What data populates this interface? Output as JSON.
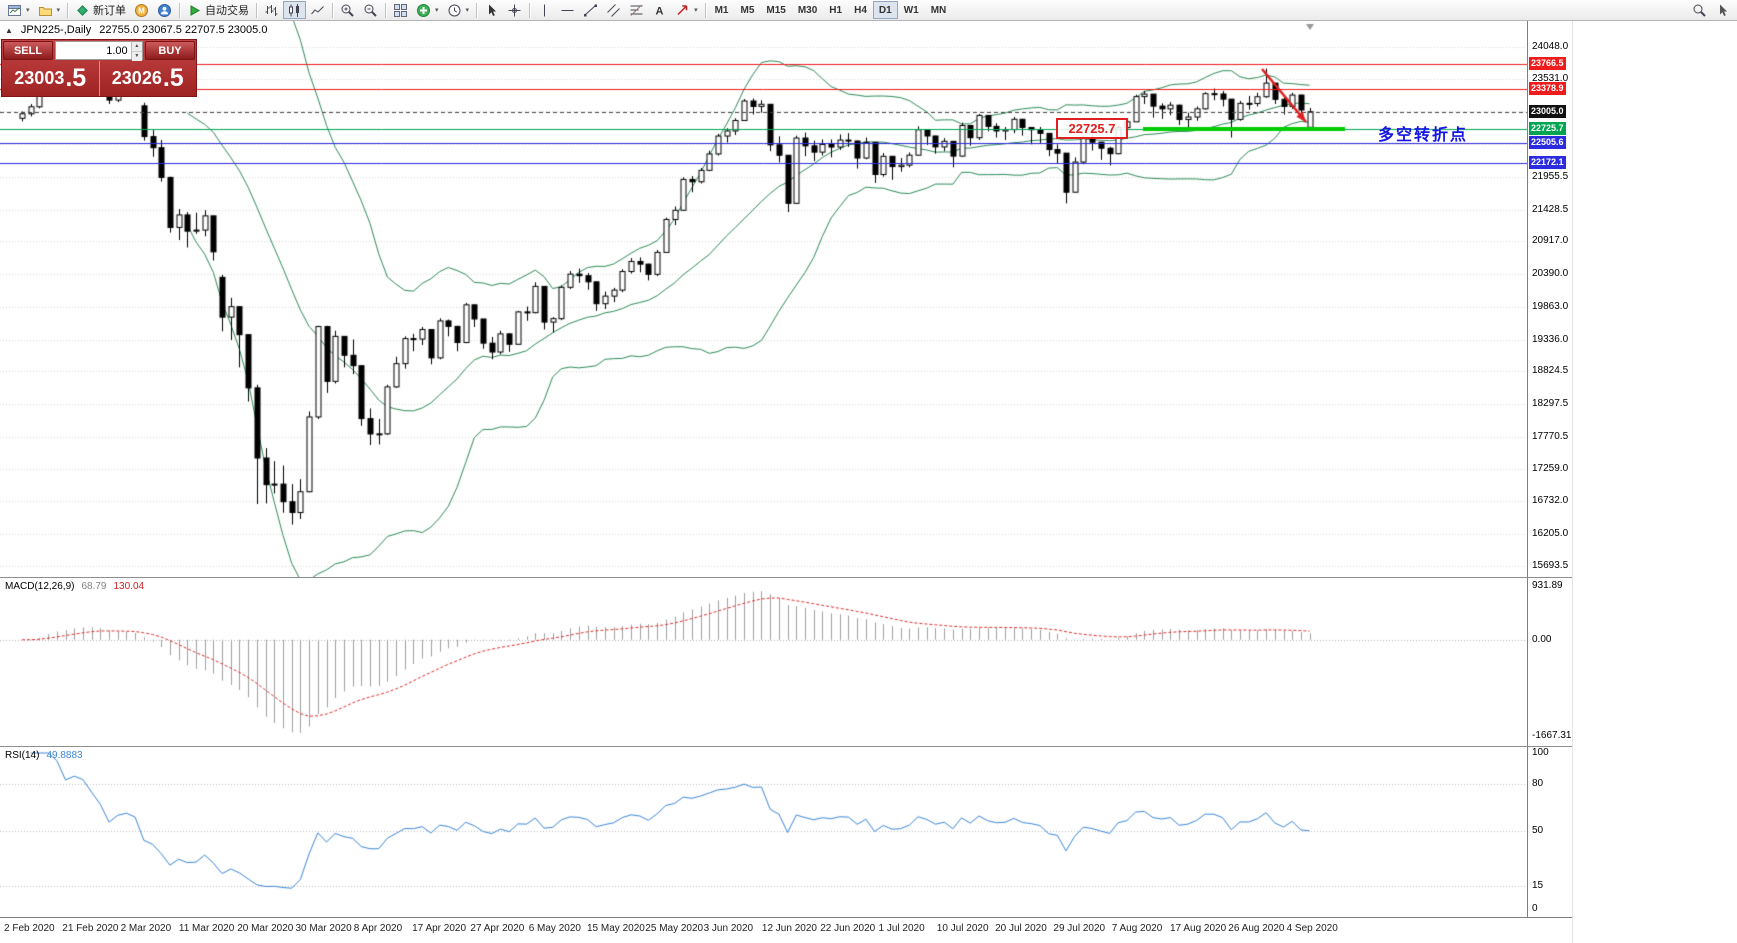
{
  "toolbar": {
    "new_order_label": "新订单",
    "autotrading_label": "自动交易",
    "timeframes": [
      "M1",
      "M5",
      "M15",
      "M30",
      "H1",
      "H4",
      "D1",
      "W1",
      "MN"
    ],
    "active_timeframe": "D1"
  },
  "chart": {
    "title": "JPN225-,Daily",
    "ohlc": "22755.0 23067.5 22707.5 23005.0"
  },
  "trade_panel": {
    "sell_label": "SELL",
    "buy_label": "BUY",
    "volume": "1.00",
    "sell_price_main": "23003",
    "sell_price_pips": ".5",
    "buy_price_main": "23026",
    "buy_price_pips": ".5"
  },
  "price_axis": {
    "labels": [
      {
        "price": 24048.0,
        "text": "24048.0"
      },
      {
        "price": 23531.0,
        "text": "23531.0"
      },
      {
        "price": 21955.5,
        "text": "21955.5"
      },
      {
        "price": 21428.5,
        "text": "21428.5"
      },
      {
        "price": 20917.0,
        "text": "20917.0"
      },
      {
        "price": 20390.0,
        "text": "20390.0"
      },
      {
        "price": 19863.0,
        "text": "19863.0"
      },
      {
        "price": 19336.0,
        "text": "19336.0"
      },
      {
        "price": 18824.5,
        "text": "18824.5"
      },
      {
        "price": 18297.5,
        "text": "18297.5"
      },
      {
        "price": 17770.5,
        "text": "17770.5"
      },
      {
        "price": 17259.0,
        "text": "17259.0"
      },
      {
        "price": 16732.0,
        "text": "16732.0"
      },
      {
        "price": 16205.0,
        "text": "16205.0"
      },
      {
        "price": 15693.5,
        "text": "15693.5"
      }
    ],
    "unlabeled_gridlines": [
      23009.5,
      22482.5
    ],
    "badges": [
      {
        "price": 23766.5,
        "text": "23766.5",
        "color": "#ee1c1c"
      },
      {
        "price": 23378.9,
        "text": "23378.9",
        "color": "#ee1c1c"
      },
      {
        "price": 23005.0,
        "text": "23005.0",
        "color": "#111111"
      },
      {
        "price": 22725.7,
        "text": "22725.7",
        "color": "#00a550"
      },
      {
        "price": 22505.6,
        "text": "22505.6",
        "color": "#2b2be0"
      },
      {
        "price": 22172.1,
        "text": "22172.1",
        "color": "#2b2be0"
      }
    ]
  },
  "hlines": [
    {
      "price": 23766.5,
      "color": "#ee1c1c",
      "style": "solid"
    },
    {
      "price": 23378.9,
      "color": "#ee1c1c",
      "style": "solid"
    },
    {
      "price": 23005.0,
      "color": "#444444",
      "style": "dash"
    },
    {
      "price": 22725.7,
      "color": "#00a550",
      "style": "solid"
    },
    {
      "price": 22505.6,
      "color": "#2b2be0",
      "style": "solid"
    },
    {
      "price": 22172.1,
      "color": "#2b2be0",
      "style": "solid"
    }
  ],
  "annotations": {
    "price_box_text": "22725.7",
    "note_text": "多空转折点",
    "note_color": "#1414e6",
    "support_segment": {
      "price": 22725.7,
      "color": "#00cc00"
    },
    "trend_arrow_color": "#e02020"
  },
  "macd": {
    "name": "MACD(12,26,9)",
    "value_main": "68.79",
    "value_signal": "130.04",
    "range": [
      -1667.31,
      931.89
    ],
    "axis": [
      {
        "v": 931.89,
        "text": "931.89"
      },
      {
        "v": 0,
        "text": "0.00"
      },
      {
        "v": -1667.31,
        "text": "-1667.31"
      }
    ]
  },
  "rsi": {
    "name": "RSI(14)",
    "value": "49.8883",
    "levels": [
      80,
      50,
      15
    ],
    "axis": [
      {
        "v": 100,
        "text": "100"
      },
      {
        "v": 80,
        "text": "80"
      },
      {
        "v": 50,
        "text": "50"
      },
      {
        "v": 15,
        "text": "15"
      },
      {
        "v": 0,
        "text": "0"
      }
    ]
  },
  "time_axis": [
    "2 Feb 2020",
    "21 Feb 2020",
    "2 Mar 2020",
    "11 Mar 2020",
    "20 Mar 2020",
    "30 Mar 2020",
    "8 Apr 2020",
    "17 Apr 2020",
    "27 Apr 2020",
    "6 May 2020",
    "15 May 2020",
    "25 May 2020",
    "3 Jun 2020",
    "12 Jun 2020",
    "22 Jun 2020",
    "1 Jul 2020",
    "10 Jul 2020",
    "20 Jul 2020",
    "29 Jul 2020",
    "7 Aug 2020",
    "17 Aug 2020",
    "26 Aug 2020",
    "4 Sep 2020"
  ],
  "chart_data": {
    "type": "candlestick",
    "symbol": "JPN225-",
    "period": "Daily",
    "price_range_visible": [
      15693.5,
      24048.0
    ],
    "indicators": [
      "Bollinger Bands(20,2)",
      "MACD(12,26,9)",
      "RSI(14)"
    ],
    "colors": {
      "bull": "#ffffff",
      "bear": "#000000",
      "wick": "#000000",
      "bollinger": "#2e8b57",
      "macd_histogram": "#a0a0a0",
      "macd_signal": "#e03030",
      "rsi": "#3d87d8"
    },
    "candles_ohlc": [
      [
        22900,
        23010,
        22850,
        22972
      ],
      [
        22972,
        23130,
        22930,
        23085
      ],
      [
        23085,
        23360,
        23060,
        23320
      ],
      [
        23320,
        23900,
        23300,
        23874
      ],
      [
        23874,
        23920,
        23740,
        23828
      ],
      [
        23828,
        23850,
        23600,
        23686
      ],
      [
        23686,
        23880,
        23650,
        23861
      ],
      [
        23861,
        23900,
        23760,
        23828
      ],
      [
        23828,
        23860,
        23640,
        23688
      ],
      [
        23688,
        23710,
        23450,
        23523
      ],
      [
        23523,
        23550,
        23130,
        23193
      ],
      [
        23193,
        23430,
        23160,
        23401
      ],
      [
        23401,
        23520,
        23350,
        23479
      ],
      [
        23479,
        23500,
        23270,
        23386
      ],
      [
        23100,
        23150,
        22540,
        22605
      ],
      [
        22605,
        22710,
        22280,
        22426
      ],
      [
        22426,
        22550,
        21880,
        21948
      ],
      [
        21948,
        21960,
        21060,
        21143
      ],
      [
        21143,
        21440,
        20940,
        21344
      ],
      [
        21344,
        21390,
        20820,
        21083
      ],
      [
        21083,
        21380,
        21040,
        21100
      ],
      [
        21100,
        21420,
        21000,
        21329
      ],
      [
        21329,
        21330,
        20610,
        20750
      ],
      [
        20340,
        20380,
        19470,
        19699
      ],
      [
        19699,
        20010,
        19330,
        19867
      ],
      [
        19867,
        19870,
        18890,
        19416
      ],
      [
        19416,
        19420,
        18340,
        18560
      ],
      [
        18560,
        18610,
        16690,
        17431
      ],
      [
        17431,
        17590,
        16700,
        17002
      ],
      [
        17002,
        17380,
        16860,
        17011
      ],
      [
        17011,
        17310,
        16550,
        16727
      ],
      [
        16727,
        17010,
        16360,
        16553
      ],
      [
        16553,
        17090,
        16450,
        16888
      ],
      [
        16888,
        18180,
        16880,
        18092
      ],
      [
        18092,
        19560,
        18060,
        19547
      ],
      [
        19547,
        19560,
        18480,
        18665
      ],
      [
        18665,
        19480,
        18630,
        19389
      ],
      [
        19389,
        19390,
        18890,
        19085
      ],
      [
        19085,
        19340,
        18780,
        18917
      ],
      [
        18917,
        18920,
        17950,
        18065
      ],
      [
        18065,
        18230,
        17640,
        17818
      ],
      [
        17818,
        18060,
        17650,
        17820
      ],
      [
        17820,
        18610,
        17800,
        18576
      ],
      [
        18576,
        19060,
        18560,
        18950
      ],
      [
        18950,
        19390,
        18870,
        19353
      ],
      [
        19353,
        19430,
        19150,
        19346
      ],
      [
        19346,
        19540,
        19250,
        19499
      ],
      [
        19499,
        19500,
        18940,
        19043
      ],
      [
        19043,
        19680,
        19020,
        19638
      ],
      [
        19638,
        19660,
        19390,
        19550
      ],
      [
        19550,
        19560,
        19150,
        19290
      ],
      [
        19290,
        19930,
        19280,
        19897
      ],
      [
        19897,
        19900,
        19540,
        19669
      ],
      [
        19669,
        19670,
        19190,
        19280
      ],
      [
        19280,
        19380,
        19020,
        19137
      ],
      [
        19137,
        19480,
        19100,
        19429
      ],
      [
        19429,
        19440,
        19140,
        19262
      ],
      [
        19262,
        19800,
        19250,
        19783
      ],
      [
        19783,
        19870,
        19640,
        19771
      ],
      [
        19771,
        20260,
        19760,
        20194
      ],
      [
        20194,
        20200,
        19500,
        19619
      ],
      [
        19619,
        19700,
        19450,
        19674
      ],
      [
        19674,
        20210,
        19650,
        20179
      ],
      [
        20179,
        20440,
        20150,
        20391
      ],
      [
        20391,
        20480,
        20250,
        20366
      ],
      [
        20366,
        20410,
        20140,
        20267
      ],
      [
        20267,
        20270,
        19800,
        19915
      ],
      [
        19915,
        20110,
        19830,
        20037
      ],
      [
        20037,
        20170,
        19940,
        20134
      ],
      [
        20134,
        20470,
        20100,
        20433
      ],
      [
        20433,
        20650,
        20400,
        20595
      ],
      [
        20595,
        20660,
        20420,
        20552
      ],
      [
        20552,
        20560,
        20290,
        20388
      ],
      [
        20388,
        20780,
        20360,
        20741
      ],
      [
        20741,
        21300,
        20740,
        21271
      ],
      [
        21271,
        21480,
        21180,
        21419
      ],
      [
        21419,
        21950,
        21410,
        21916
      ],
      [
        21916,
        21970,
        21710,
        21878
      ],
      [
        21878,
        22100,
        21850,
        22062
      ],
      [
        22062,
        22380,
        22050,
        22326
      ],
      [
        22326,
        22650,
        22300,
        22614
      ],
      [
        22614,
        22740,
        22510,
        22696
      ],
      [
        22696,
        22900,
        22630,
        22864
      ],
      [
        22864,
        23210,
        22860,
        23178
      ],
      [
        23178,
        23220,
        22960,
        23091
      ],
      [
        23091,
        23190,
        22990,
        23125
      ],
      [
        23125,
        23130,
        22370,
        22472
      ],
      [
        22472,
        22610,
        22190,
        22305
      ],
      [
        22305,
        22310,
        21390,
        21531
      ],
      [
        21531,
        22620,
        21520,
        22582
      ],
      [
        22582,
        22670,
        22290,
        22456
      ],
      [
        22456,
        22540,
        22210,
        22355
      ],
      [
        22355,
        22560,
        22300,
        22479
      ],
      [
        22479,
        22560,
        22270,
        22437
      ],
      [
        22437,
        22640,
        22390,
        22549
      ],
      [
        22549,
        22660,
        22440,
        22534
      ],
      [
        22534,
        22540,
        22090,
        22260
      ],
      [
        22260,
        22590,
        22240,
        22512
      ],
      [
        22512,
        22520,
        21860,
        21995
      ],
      [
        21995,
        22340,
        21960,
        22288
      ],
      [
        22288,
        22290,
        21910,
        22122
      ],
      [
        22122,
        22260,
        22040,
        22146
      ],
      [
        22146,
        22350,
        22110,
        22306
      ],
      [
        22306,
        22770,
        22300,
        22714
      ],
      [
        22714,
        22720,
        22470,
        22615
      ],
      [
        22615,
        22620,
        22330,
        22439
      ],
      [
        22439,
        22580,
        22370,
        22529
      ],
      [
        22529,
        22530,
        22110,
        22291
      ],
      [
        22291,
        22830,
        22280,
        22784
      ],
      [
        22784,
        22790,
        22460,
        22587
      ],
      [
        22587,
        22970,
        22550,
        22946
      ],
      [
        22946,
        22950,
        22690,
        22770
      ],
      [
        22770,
        22820,
        22590,
        22696
      ],
      [
        22696,
        22760,
        22550,
        22717
      ],
      [
        22717,
        22920,
        22660,
        22884
      ],
      [
        22884,
        22890,
        22620,
        22752
      ],
      [
        22752,
        22760,
        22480,
        22715
      ],
      [
        22715,
        22760,
        22490,
        22657
      ],
      [
        22657,
        22660,
        22290,
        22397
      ],
      [
        22397,
        22480,
        22180,
        22339
      ],
      [
        22339,
        22340,
        21530,
        21710
      ],
      [
        21710,
        22270,
        21700,
        22195
      ],
      [
        22195,
        22620,
        22160,
        22573
      ],
      [
        22573,
        22650,
        22380,
        22515
      ],
      [
        22515,
        22520,
        22230,
        22418
      ],
      [
        22418,
        22440,
        22140,
        22330
      ],
      [
        22330,
        22780,
        22320,
        22750
      ],
      [
        22750,
        22890,
        22700,
        22843
      ],
      [
        22843,
        23280,
        22840,
        23249
      ],
      [
        23249,
        23340,
        23130,
        23289
      ],
      [
        23289,
        23290,
        22910,
        23096
      ],
      [
        23096,
        23140,
        22890,
        23051
      ],
      [
        23051,
        23160,
        22950,
        23111
      ],
      [
        23111,
        23120,
        22790,
        22880
      ],
      [
        22880,
        22990,
        22740,
        22920
      ],
      [
        22920,
        23090,
        22860,
        23052
      ],
      [
        23052,
        23320,
        23040,
        23296
      ],
      [
        23296,
        23380,
        23190,
        23291
      ],
      [
        23291,
        23340,
        23090,
        23208
      ],
      [
        23208,
        23210,
        22590,
        22882
      ],
      [
        22882,
        23180,
        22860,
        23140
      ],
      [
        23140,
        23260,
        23040,
        23138
      ],
      [
        23138,
        23310,
        23090,
        23247
      ],
      [
        23247,
        23700,
        23230,
        23466
      ],
      [
        23466,
        23470,
        23130,
        23205
      ],
      [
        23205,
        23230,
        22960,
        23090
      ],
      [
        23090,
        23310,
        23050,
        23274
      ],
      [
        23274,
        23280,
        22880,
        23033
      ],
      [
        22755,
        23067.5,
        22707.5,
        23005
      ]
    ]
  }
}
